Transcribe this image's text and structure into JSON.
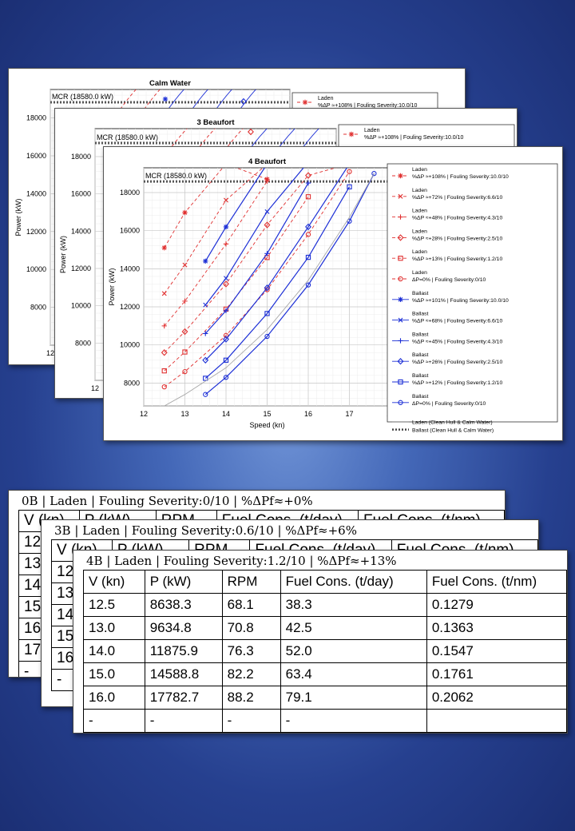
{
  "mcr_label": "MCR (18580.0 kW)",
  "chart_data": [
    {
      "type": "line",
      "title": "Calm Water",
      "ylabel": "Power (kW)",
      "xlabel": "Speed (kn)",
      "xlim": [
        12,
        18
      ],
      "ylim": [
        6000,
        19500
      ],
      "yticks": [
        "8000",
        "10000",
        "12000",
        "14000",
        "16000",
        "18000"
      ],
      "xticks": [
        "12"
      ],
      "legend": [
        "Laden"
      ],
      "legend_sub": [
        "%ΔP ≈+108% | Fouling Severity:10.0/10"
      ]
    },
    {
      "type": "line",
      "title": "3 Beaufort",
      "ylabel": "Power (kW)",
      "xlabel": "Speed (kn)",
      "xlim": [
        12,
        18
      ],
      "ylim": [
        6000,
        19500
      ],
      "yticks": [
        "8000",
        "10000",
        "12000",
        "14000",
        "16000",
        "18000"
      ],
      "xticks": [
        "12"
      ],
      "legend": [
        "Laden"
      ],
      "legend_sub": [
        "%ΔP ≈+108% | Fouling Severity:10.0/10"
      ]
    },
    {
      "type": "line",
      "title": "4 Beaufort",
      "ylabel": "Power (kW)",
      "xlabel": "Speed (kn)",
      "xlim": [
        12,
        18
      ],
      "ylim": [
        6800,
        19300
      ],
      "xticks": [
        "12",
        "13",
        "14",
        "15",
        "16",
        "17",
        "18"
      ],
      "yticks": [
        "8000",
        "10000",
        "12000",
        "14000",
        "16000",
        "18000"
      ],
      "mcr": 18580,
      "series": [
        {
          "name": "Laden",
          "sub": "%ΔP ≈+108% | Fouling Severity:10.0/10",
          "group": "laden",
          "marker": "star",
          "x": [
            12.5,
            13.0,
            14.0,
            15.0
          ],
          "y": [
            15100,
            16950,
            19500,
            18700
          ]
        },
        {
          "name": "Laden",
          "sub": "%ΔP ≈+72% | Fouling Severity:6.6/10",
          "group": "laden",
          "marker": "x",
          "x": [
            12.5,
            13.0,
            14.0,
            15.0
          ],
          "y": [
            12700,
            14200,
            17600,
            19500
          ]
        },
        {
          "name": "Laden",
          "sub": "%ΔP ≈+48% | Fouling Severity:4.3/10",
          "group": "laden",
          "marker": "plus",
          "x": [
            12.5,
            13.0,
            14.0,
            15.0
          ],
          "y": [
            11000,
            12300,
            15300,
            18600
          ]
        },
        {
          "name": "Laden",
          "sub": "%ΔP ≈+28% | Fouling Severity:2.5/10",
          "group": "laden",
          "marker": "diamond",
          "x": [
            12.5,
            13.0,
            14.0,
            15.0,
            16.0,
            17.0
          ],
          "y": [
            9600,
            10700,
            13200,
            16300,
            18900,
            19500
          ]
        },
        {
          "name": "Laden",
          "sub": "%ΔP ≈+13% | Fouling Severity:1.2/10",
          "group": "laden",
          "marker": "square",
          "x": [
            12.5,
            13.0,
            14.0,
            15.0,
            16.0
          ],
          "y": [
            8640,
            9630,
            11880,
            14590,
            17780
          ]
        },
        {
          "name": "Laden",
          "sub": "ΔP=0% | Fouling Severity:0/10",
          "group": "laden",
          "marker": "circle",
          "x": [
            12.5,
            13.0,
            14.0,
            15.0,
            16.0,
            17.0
          ],
          "y": [
            7800,
            8600,
            10500,
            12900,
            15800,
            19100
          ]
        },
        {
          "name": "Ballast",
          "sub": "%ΔP ≈+101% | Fouling Severity:10.0/10",
          "group": "ballast",
          "marker": "star",
          "x": [
            13.5,
            14.0,
            15.0,
            16.0
          ],
          "y": [
            14400,
            16200,
            19500,
            19600
          ]
        },
        {
          "name": "Ballast",
          "sub": "%ΔP ≈+68% | Fouling Severity:6.6/10",
          "group": "ballast",
          "marker": "x",
          "x": [
            13.5,
            14.0,
            15.0,
            16.0
          ],
          "y": [
            12100,
            13500,
            17000,
            19600
          ]
        },
        {
          "name": "Ballast",
          "sub": "%ΔP ≈+45% | Fouling Severity:4.3/10",
          "group": "ballast",
          "marker": "plus",
          "x": [
            13.5,
            14.0,
            15.0,
            16.0
          ],
          "y": [
            10600,
            11800,
            14800,
            18500
          ]
        },
        {
          "name": "Ballast",
          "sub": "%ΔP ≈+26% | Fouling Severity:2.5/10",
          "group": "ballast",
          "marker": "diamond",
          "x": [
            13.5,
            14.0,
            15.0,
            16.0,
            17.0
          ],
          "y": [
            9200,
            10300,
            13000,
            16200,
            19500
          ]
        },
        {
          "name": "Ballast",
          "sub": "%ΔP ≈+12% | Fouling Severity:1.2/10",
          "group": "ballast",
          "marker": "square",
          "x": [
            13.5,
            14.0,
            15.0,
            16.0,
            17.0
          ],
          "y": [
            8250,
            9200,
            11650,
            14600,
            18300
          ]
        },
        {
          "name": "Ballast",
          "sub": "ΔP=0% | Fouling Severity:0/10",
          "group": "ballast",
          "marker": "circle",
          "x": [
            13.5,
            14.0,
            15.0,
            16.0,
            17.0,
            17.6
          ],
          "y": [
            7400,
            8300,
            10450,
            13150,
            16500,
            19000
          ]
        },
        {
          "name": "Laden (Clean Hull & Calm Water)",
          "group": "clean",
          "marker": "none",
          "x": [
            12.5,
            13.0,
            14.0,
            15.0,
            16.0,
            17.0,
            17.6
          ],
          "y": [
            6800,
            7400,
            8800,
            10800,
            13400,
            16700,
            19000
          ]
        },
        {
          "name": "Ballast (Clean Hull & Calm Water)",
          "group": "mcr",
          "marker": "none",
          "x": [],
          "y": []
        }
      ]
    }
  ],
  "tables": [
    {
      "title": "0B | Laden | Fouling Severity:0/10 | %ΔPf≈+0%",
      "headers": [
        "V (kn)",
        "P (kW)",
        "RPM",
        "Fuel Cons. (t/day)",
        "Fuel Cons. (t/nm)"
      ],
      "rows": [
        [
          "12",
          ""
        ],
        [
          "13",
          ""
        ],
        [
          "14",
          ""
        ],
        [
          "15",
          ""
        ],
        [
          "16",
          ""
        ],
        [
          "17",
          ""
        ],
        [
          "-",
          ""
        ]
      ]
    },
    {
      "title": "3B | Laden | Fouling Severity:0.6/10 | %ΔPf≈+6%",
      "headers": [
        "V (kn)",
        "P (kW)",
        "RPM",
        "Fuel Cons. (t/day)",
        "Fuel Cons. (t/nm)"
      ],
      "rows": [
        [
          "12",
          ""
        ],
        [
          "13",
          ""
        ],
        [
          "14",
          ""
        ],
        [
          "15",
          ""
        ],
        [
          "16",
          ""
        ],
        [
          "-",
          ""
        ]
      ]
    },
    {
      "title": "4B | Laden | Fouling Severity:1.2/10 | %ΔPf≈+13%",
      "headers": [
        "V (kn)",
        "P (kW)",
        "RPM",
        "Fuel Cons. (t/day)",
        "Fuel Cons. (t/nm)"
      ],
      "rows": [
        [
          "12.5",
          "8638.3",
          "68.1",
          "38.3",
          "0.1279"
        ],
        [
          "13.0",
          "9634.8",
          "70.8",
          "42.5",
          "0.1363"
        ],
        [
          "14.0",
          "11875.9",
          "76.3",
          "52.0",
          "0.1547"
        ],
        [
          "15.0",
          "14588.8",
          "82.2",
          "63.4",
          "0.1761"
        ],
        [
          "16.0",
          "17782.7",
          "88.2",
          "79.1",
          "0.2062"
        ],
        [
          "-",
          "-",
          "-",
          "-",
          ""
        ]
      ]
    }
  ]
}
